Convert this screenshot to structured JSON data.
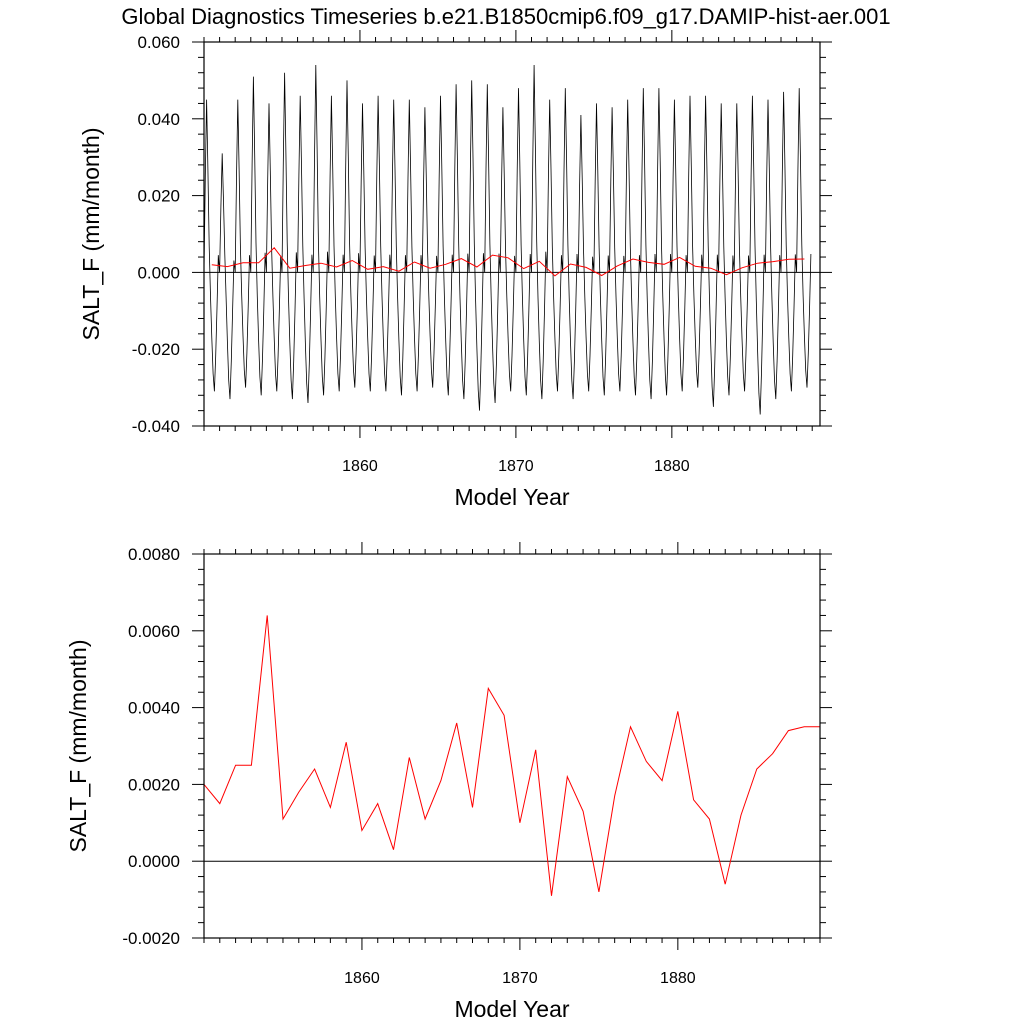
{
  "title": "Global Diagnostics Timeseries b.e21.B1850cmip6.f09_g17.DAMIP-hist-aer.001",
  "colors": {
    "monthly": "#000000",
    "annual": "#ff0000",
    "zero_line": "#000000",
    "frame": "#000000"
  },
  "chart_data": [
    {
      "type": "line",
      "xlabel": "Model Year",
      "ylabel": "SALT_F (mm/month)",
      "xlim": [
        1850,
        1889.5
      ],
      "ylim": [
        -0.04,
        0.06
      ],
      "x_ticks": [
        1860,
        1870,
        1880
      ],
      "x_tick_labels": [
        "1860",
        "1870",
        "1880"
      ],
      "y_ticks": [
        -0.04,
        -0.02,
        0.0,
        0.02,
        0.04,
        0.06
      ],
      "y_tick_labels": [
        "-0.040",
        "-0.020",
        "0.000",
        "0.020",
        "0.040",
        "0.060"
      ],
      "zero_line": 0,
      "grid": false,
      "series": [
        {
          "color": "#000000",
          "kind": "monthly",
          "start_year": 1850,
          "annual_peaks": [
            0.045,
            0.031,
            0.045,
            0.051,
            0.044,
            0.052,
            0.046,
            0.054,
            0.046,
            0.05,
            0.044,
            0.046,
            0.045,
            0.045,
            0.043,
            0.046,
            0.049,
            0.05,
            0.049,
            0.043,
            0.048,
            0.054,
            0.045,
            0.048,
            0.041,
            0.044,
            0.043,
            0.045,
            0.048,
            0.048,
            0.045,
            0.046,
            0.046,
            0.044,
            0.044,
            0.046,
            0.045,
            0.047,
            0.048
          ],
          "annual_troughs": [
            -0.031,
            -0.033,
            -0.03,
            -0.032,
            -0.031,
            -0.033,
            -0.034,
            -0.032,
            -0.031,
            -0.03,
            -0.031,
            -0.031,
            -0.032,
            -0.031,
            -0.03,
            -0.032,
            -0.033,
            -0.036,
            -0.034,
            -0.031,
            -0.032,
            -0.033,
            -0.031,
            -0.033,
            -0.031,
            -0.032,
            -0.031,
            -0.032,
            -0.033,
            -0.032,
            -0.031,
            -0.03,
            -0.035,
            -0.032,
            -0.031,
            -0.037,
            -0.033,
            -0.031,
            -0.03
          ]
        },
        {
          "color": "#ff0000",
          "kind": "annual",
          "x": [
            1850.5,
            1851.5,
            1852.5,
            1853.5,
            1854.5,
            1855.5,
            1856.5,
            1857.5,
            1858.5,
            1859.5,
            1860.5,
            1861.5,
            1862.5,
            1863.5,
            1864.5,
            1865.5,
            1866.5,
            1867.5,
            1868.5,
            1869.5,
            1870.5,
            1871.5,
            1872.5,
            1873.5,
            1874.5,
            1875.5,
            1876.5,
            1877.5,
            1878.5,
            1879.5,
            1880.5,
            1881.5,
            1882.5,
            1883.5,
            1884.5,
            1885.5,
            1886.5,
            1887.5,
            1888.5
          ],
          "y": [
            0.002,
            0.0015,
            0.0025,
            0.0025,
            0.0064,
            0.0011,
            0.0018,
            0.0024,
            0.0014,
            0.0031,
            0.0008,
            0.0015,
            0.0003,
            0.0027,
            0.0011,
            0.0021,
            0.0036,
            0.0014,
            0.0045,
            0.0038,
            0.001,
            0.0029,
            -0.0009,
            0.0022,
            0.0013,
            -0.0008,
            0.0017,
            0.0035,
            0.0026,
            0.0021,
            0.0039,
            0.0016,
            0.0011,
            -0.0006,
            0.0012,
            0.0024,
            0.0028,
            0.0034,
            0.0035
          ]
        }
      ]
    },
    {
      "type": "line",
      "xlabel": "Model Year",
      "ylabel": "SALT_F (mm/month)",
      "xlim": [
        1850,
        1889
      ],
      "ylim": [
        -0.002,
        0.008
      ],
      "x_ticks": [
        1860,
        1870,
        1880
      ],
      "x_tick_labels": [
        "1860",
        "1870",
        "1880"
      ],
      "y_ticks": [
        -0.002,
        0.0,
        0.002,
        0.004,
        0.006,
        0.008
      ],
      "y_tick_labels": [
        "-0.0020",
        "0.0000",
        "0.0020",
        "0.0040",
        "0.0060",
        "0.0080"
      ],
      "zero_line": 0,
      "grid": false,
      "series": [
        {
          "color": "#ff0000",
          "kind": "annual",
          "x": [
            1850,
            1851,
            1852,
            1853,
            1854,
            1855,
            1856,
            1857,
            1858,
            1859,
            1860,
            1861,
            1862,
            1863,
            1864,
            1865,
            1866,
            1867,
            1868,
            1869,
            1870,
            1871,
            1872,
            1873,
            1874,
            1875,
            1876,
            1877,
            1878,
            1879,
            1880,
            1881,
            1882,
            1883,
            1884,
            1885,
            1886,
            1887,
            1888,
            1889
          ],
          "y": [
            0.002,
            0.0015,
            0.0025,
            0.0025,
            0.0064,
            0.0011,
            0.0018,
            0.0024,
            0.0014,
            0.0031,
            0.0008,
            0.0015,
            0.0003,
            0.0027,
            0.0011,
            0.0021,
            0.0036,
            0.0014,
            0.0045,
            0.0038,
            0.001,
            0.0029,
            -0.0009,
            0.0022,
            0.0013,
            -0.0008,
            0.0017,
            0.0035,
            0.0026,
            0.0021,
            0.0039,
            0.0016,
            0.0011,
            -0.0006,
            0.0012,
            0.0024,
            0.0028,
            0.0034,
            0.0035,
            0.0035
          ]
        }
      ]
    }
  ]
}
